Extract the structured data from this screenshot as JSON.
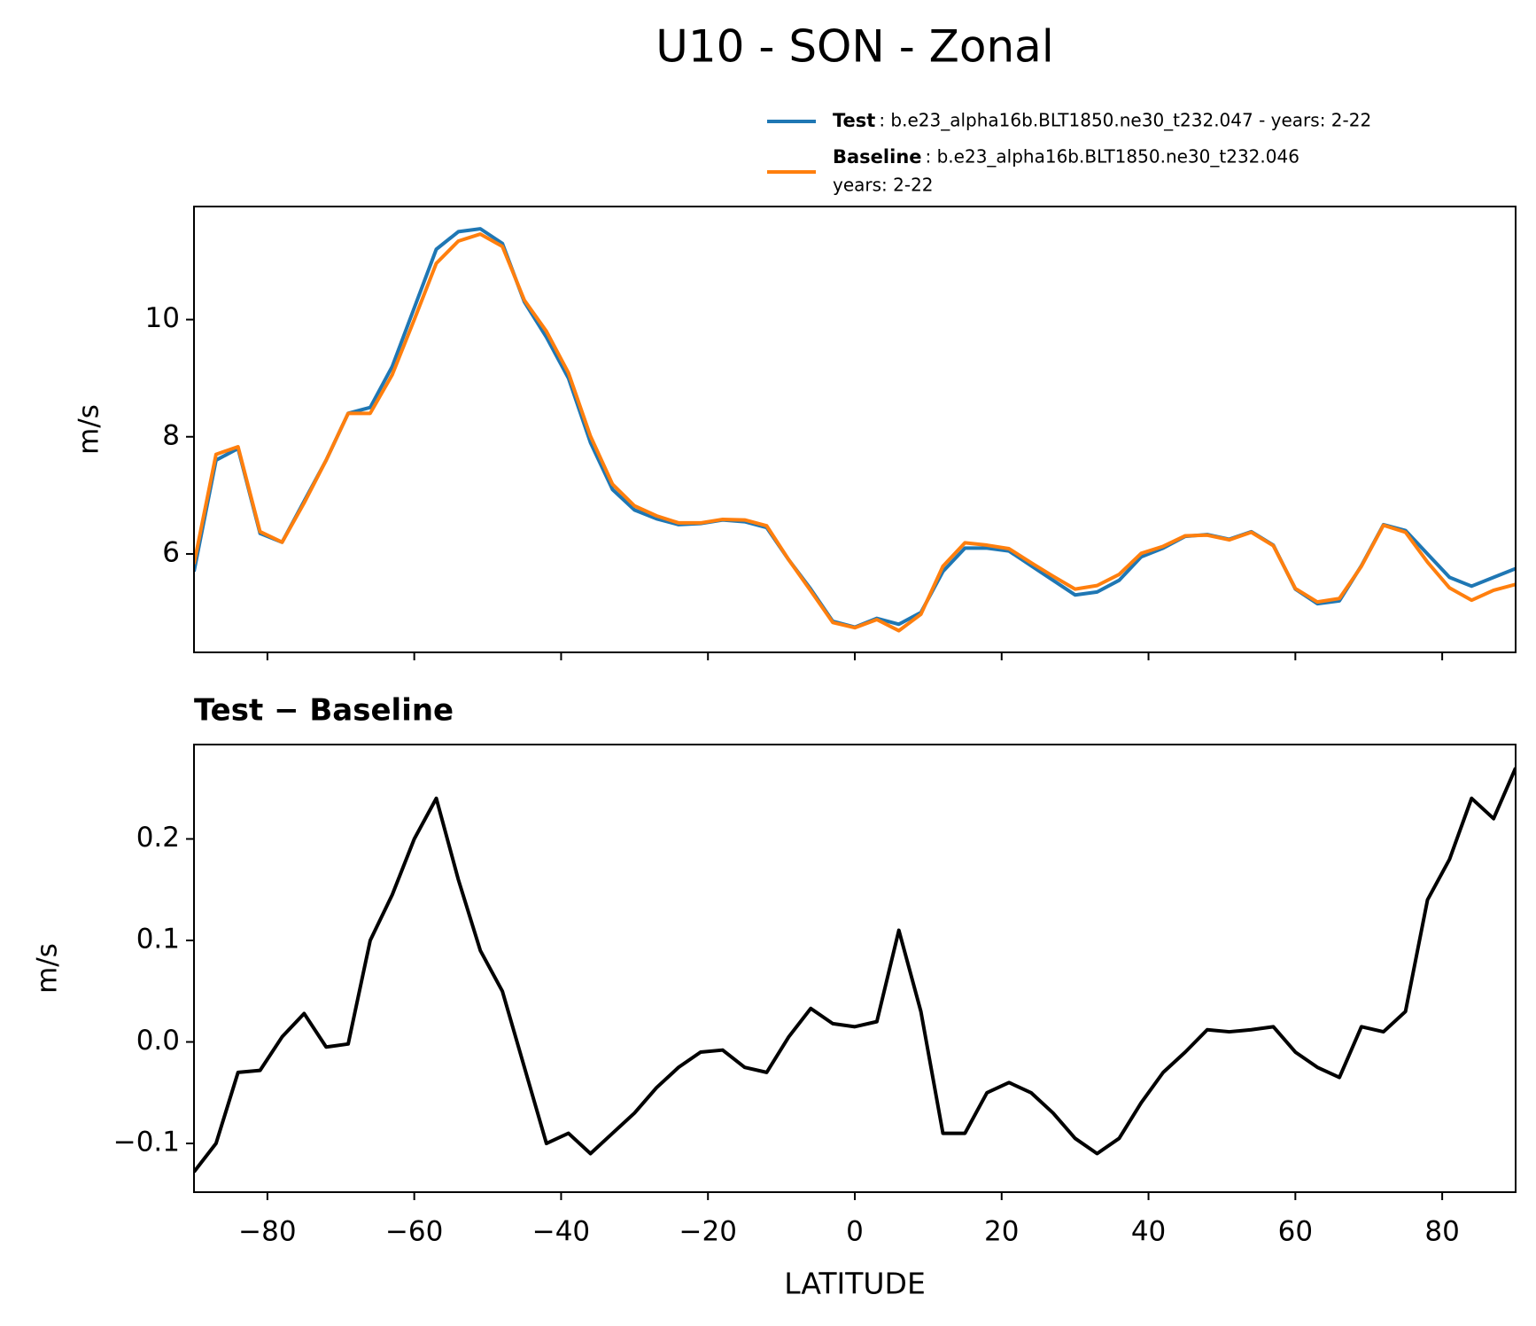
{
  "chart_data": [
    {
      "type": "line",
      "title": "U10 - SON - Zonal",
      "ylabel": "m/s",
      "x": [
        -90,
        -87,
        -84,
        -81,
        -78,
        -75,
        -72,
        -69,
        -66,
        -63,
        -60,
        -57,
        -54,
        -51,
        -48,
        -45,
        -42,
        -39,
        -36,
        -33,
        -30,
        -27,
        -24,
        -21,
        -18,
        -15,
        -12,
        -9,
        -6,
        -3,
        0,
        3,
        6,
        9,
        12,
        15,
        18,
        21,
        24,
        27,
        30,
        33,
        36,
        39,
        42,
        45,
        48,
        51,
        54,
        57,
        60,
        63,
        66,
        69,
        72,
        75,
        78,
        81,
        84,
        87,
        90
      ],
      "series": [
        {
          "name": "Test",
          "description": [
            ": b.e23_alpha16b.BLT1850.ne30_t232.047 - years: 2-22"
          ],
          "color": "#1f77b4",
          "values": [
            5.7,
            7.6,
            7.8,
            6.35,
            6.2,
            6.9,
            7.6,
            8.4,
            8.5,
            9.2,
            10.2,
            11.2,
            11.5,
            11.55,
            11.3,
            10.3,
            9.7,
            9.0,
            7.9,
            7.1,
            6.75,
            6.6,
            6.5,
            6.52,
            6.58,
            6.55,
            6.45,
            5.9,
            5.4,
            4.85,
            4.75,
            4.9,
            4.8,
            5.0,
            5.7,
            6.1,
            6.1,
            6.05,
            5.8,
            5.55,
            5.3,
            5.35,
            5.55,
            5.95,
            6.1,
            6.3,
            6.33,
            6.25,
            6.38,
            6.15,
            5.4,
            5.15,
            5.2,
            5.8,
            6.5,
            6.4,
            6.0,
            5.6,
            5.45,
            5.6,
            5.75
          ]
        },
        {
          "name": "Baseline",
          "description": [
            ": b.e23_alpha16b.BLT1850.ne30_t232.046",
            "years: 2-22"
          ],
          "color": "#ff7f0e",
          "values": [
            5.83,
            7.7,
            7.83,
            6.38,
            6.2,
            6.87,
            7.6,
            8.4,
            8.4,
            9.06,
            10.0,
            10.96,
            11.34,
            11.46,
            11.25,
            10.33,
            9.8,
            9.09,
            8.01,
            7.19,
            6.82,
            6.65,
            6.53,
            6.53,
            6.59,
            6.58,
            6.48,
            5.9,
            5.37,
            4.83,
            4.74,
            4.88,
            4.69,
            4.97,
            5.79,
            6.19,
            6.15,
            6.09,
            5.85,
            5.62,
            5.4,
            5.46,
            5.65,
            6.01,
            6.13,
            6.31,
            6.32,
            6.24,
            6.37,
            6.14,
            5.41,
            5.18,
            5.24,
            5.79,
            6.49,
            6.37,
            5.86,
            5.42,
            5.21,
            5.38,
            5.48
          ]
        }
      ],
      "xlim": [
        -90,
        90
      ],
      "xticks": [
        -80,
        -60,
        -40,
        -20,
        0,
        20,
        40,
        60,
        80
      ],
      "ylim": [
        4.32,
        11.93
      ],
      "yticks": [
        6,
        8,
        10
      ],
      "legend": "upper right"
    },
    {
      "type": "line",
      "title": "Test − Baseline",
      "ylabel": "m/s",
      "xlabel": "LATITUDE",
      "x": [
        -90,
        -87,
        -84,
        -81,
        -78,
        -75,
        -72,
        -69,
        -66,
        -63,
        -60,
        -57,
        -54,
        -51,
        -48,
        -45,
        -42,
        -39,
        -36,
        -33,
        -30,
        -27,
        -24,
        -21,
        -18,
        -15,
        -12,
        -9,
        -6,
        -3,
        0,
        3,
        6,
        9,
        12,
        15,
        18,
        21,
        24,
        27,
        30,
        33,
        36,
        39,
        42,
        45,
        48,
        51,
        54,
        57,
        60,
        63,
        66,
        69,
        72,
        75,
        78,
        81,
        84,
        87,
        90
      ],
      "series": [
        {
          "color": "#000000",
          "values": [
            -0.128,
            -0.1,
            -0.03,
            -0.028,
            0.005,
            0.028,
            -0.005,
            -0.002,
            0.1,
            0.145,
            0.2,
            0.24,
            0.16,
            0.09,
            0.05,
            -0.025,
            -0.1,
            -0.09,
            -0.11,
            -0.09,
            -0.07,
            -0.045,
            -0.025,
            -0.01,
            -0.008,
            -0.025,
            -0.03,
            0.005,
            0.033,
            0.018,
            0.015,
            0.02,
            0.11,
            0.03,
            -0.09,
            -0.09,
            -0.05,
            -0.04,
            -0.05,
            -0.07,
            -0.095,
            -0.11,
            -0.095,
            -0.06,
            -0.03,
            -0.01,
            0.012,
            0.01,
            0.012,
            0.015,
            -0.01,
            -0.025,
            -0.035,
            0.015,
            0.01,
            0.03,
            0.14,
            0.18,
            0.24,
            0.22,
            0.27
          ]
        }
      ],
      "xlim": [
        -90,
        90
      ],
      "xticks": [
        {
          "value": -80,
          "label": "−80"
        },
        {
          "value": -60,
          "label": "−60"
        },
        {
          "value": -40,
          "label": "−40"
        },
        {
          "value": -20,
          "label": "−20"
        },
        0,
        20,
        40,
        60,
        80
      ],
      "ylim": [
        -0.148,
        0.293
      ],
      "yticks": [
        {
          "value": -0.1,
          "label": "−0.1"
        },
        {
          "value": 0,
          "label": "0.0"
        },
        0.1,
        0.2
      ]
    }
  ]
}
